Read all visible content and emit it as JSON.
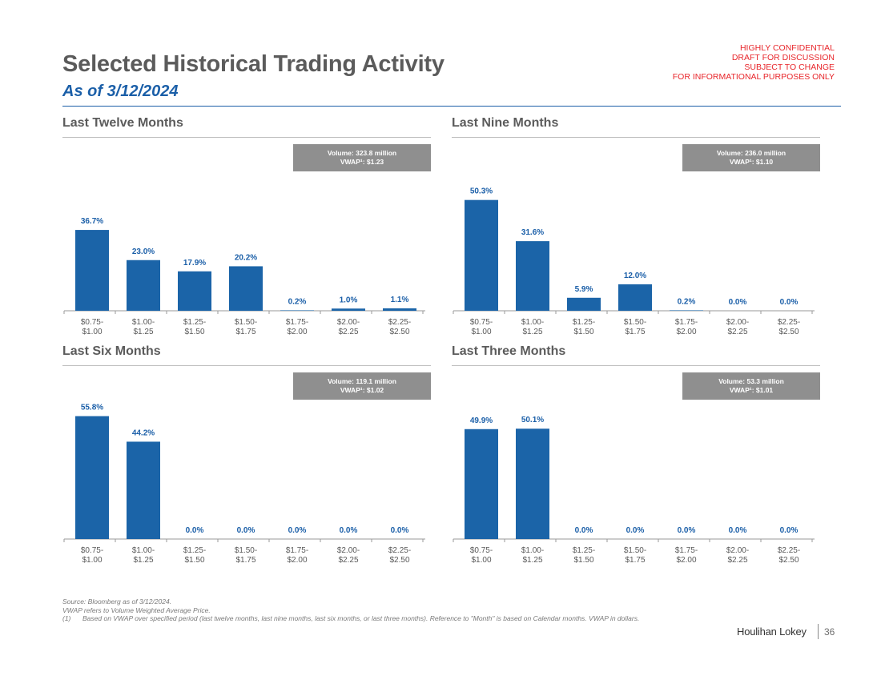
{
  "header": {
    "title": "Selected Historical Trading Activity",
    "subtitle": "As of 3/12/2024",
    "confidential": [
      "HIGHLY CONFIDENTIAL",
      "DRAFT FOR DISCUSSION",
      "SUBJECT TO CHANGE",
      "FOR INFORMATIONAL PURPOSES ONLY"
    ]
  },
  "colors": {
    "bar": "#1b64a8",
    "value_label": "#1b5fa8",
    "axis": "#9a9a9a",
    "tick_label": "#595959"
  },
  "chart_data": [
    {
      "type": "bar",
      "title": "Last Twelve Months",
      "volume_label": "Volume: 323.8 million",
      "vwap_label": "VWAP¹: $1.23",
      "categories": [
        "$0.75-\n$1.00",
        "$1.00-\n$1.25",
        "$1.25-\n$1.50",
        "$1.50-\n$1.75",
        "$1.75-\n$2.00",
        "$2.00-\n$2.25",
        "$2.25-\n$2.50"
      ],
      "values": [
        36.7,
        23.0,
        17.9,
        20.2,
        0.2,
        1.0,
        1.1
      ],
      "value_labels": [
        "36.7%",
        "23.0%",
        "17.9%",
        "20.2%",
        "0.2%",
        "1.0%",
        "1.1%"
      ],
      "xlabel": "",
      "ylabel": "",
      "ylim": [
        0,
        60
      ]
    },
    {
      "type": "bar",
      "title": "Last Nine Months",
      "volume_label": "Volume: 236.0 million",
      "vwap_label": "VWAP¹: $1.10",
      "categories": [
        "$0.75-\n$1.00",
        "$1.00-\n$1.25",
        "$1.25-\n$1.50",
        "$1.50-\n$1.75",
        "$1.75-\n$2.00",
        "$2.00-\n$2.25",
        "$2.25-\n$2.50"
      ],
      "values": [
        50.3,
        31.6,
        5.9,
        12.0,
        0.2,
        0.0,
        0.0
      ],
      "value_labels": [
        "50.3%",
        "31.6%",
        "5.9%",
        "12.0%",
        "0.2%",
        "0.0%",
        "0.0%"
      ],
      "xlabel": "",
      "ylabel": "",
      "ylim": [
        0,
        60
      ]
    },
    {
      "type": "bar",
      "title": "Last Six Months",
      "volume_label": "Volume: 119.1 million",
      "vwap_label": "VWAP¹: $1.02",
      "categories": [
        "$0.75-\n$1.00",
        "$1.00-\n$1.25",
        "$1.25-\n$1.50",
        "$1.50-\n$1.75",
        "$1.75-\n$2.00",
        "$2.00-\n$2.25",
        "$2.25-\n$2.50"
      ],
      "values": [
        55.8,
        44.2,
        0.0,
        0.0,
        0.0,
        0.0,
        0.0
      ],
      "value_labels": [
        "55.8%",
        "44.2%",
        "0.0%",
        "0.0%",
        "0.0%",
        "0.0%",
        "0.0%"
      ],
      "xlabel": "",
      "ylabel": "",
      "ylim": [
        0,
        60
      ]
    },
    {
      "type": "bar",
      "title": "Last Three Months",
      "volume_label": "Volume: 53.3 million",
      "vwap_label": "VWAP¹: $1.01",
      "categories": [
        "$0.75-\n$1.00",
        "$1.00-\n$1.25",
        "$1.25-\n$1.50",
        "$1.50-\n$1.75",
        "$1.75-\n$2.00",
        "$2.00-\n$2.25",
        "$2.25-\n$2.50"
      ],
      "values": [
        49.9,
        50.1,
        0.0,
        0.0,
        0.0,
        0.0,
        0.0
      ],
      "value_labels": [
        "49.9%",
        "50.1%",
        "0.0%",
        "0.0%",
        "0.0%",
        "0.0%",
        "0.0%"
      ],
      "xlabel": "",
      "ylabel": "",
      "ylim": [
        0,
        60
      ]
    }
  ],
  "footnotes": {
    "source": "Source: Bloomberg as of 3/12/2024.",
    "vwap": "VWAP refers to Volume Weighted Average Price.",
    "note_number": "(1)",
    "note_text": "Based on VWAP over specified period (last twelve months, last nine months, last six months, or last three months). Reference to \"Month\" is based on Calendar months. VWAP in dollars."
  },
  "footer": {
    "brand": "Houlihan Lokey",
    "page_number": "36"
  }
}
